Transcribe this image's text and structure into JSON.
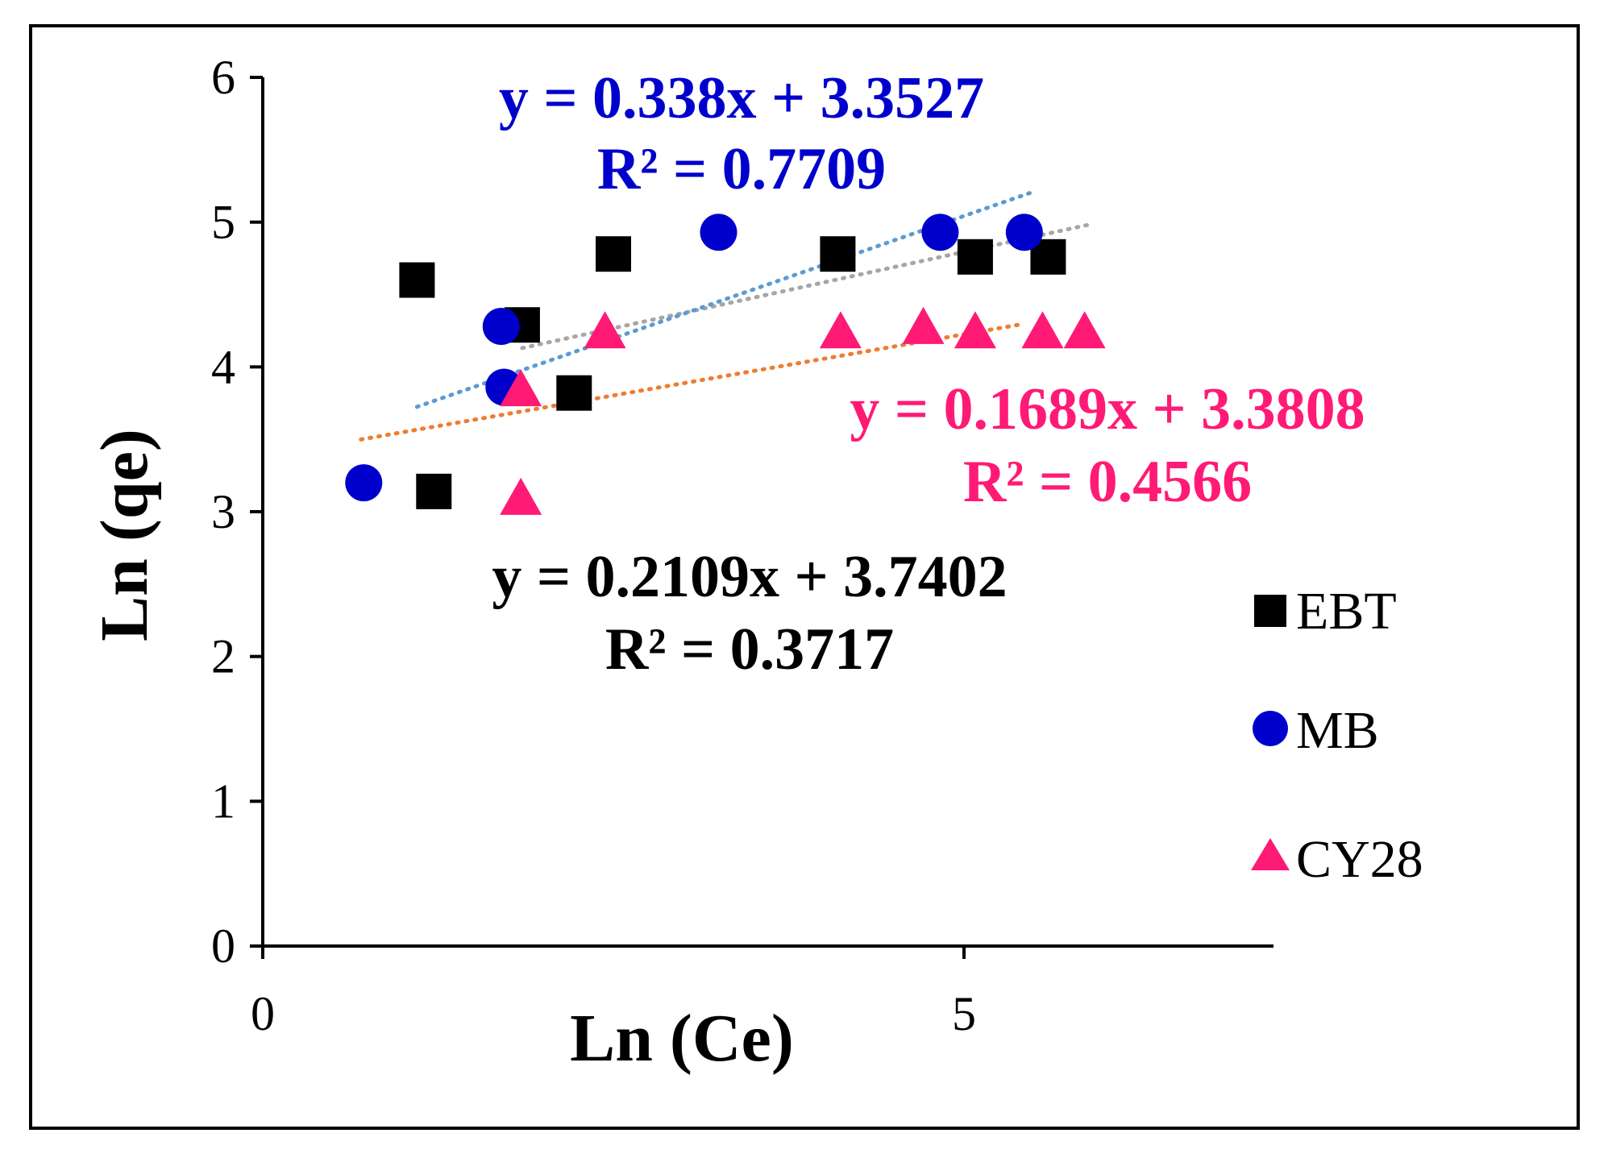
{
  "chart_data": {
    "type": "scatter",
    "xlabel": "Ln (Ce)",
    "ylabel": "Ln (qe)",
    "xlim": [
      0,
      7
    ],
    "ylim": [
      0,
      6
    ],
    "x_ticks": [
      "0",
      "5"
    ],
    "x_tick_values": [
      0,
      5
    ],
    "y_ticks": [
      "0",
      "1",
      "2",
      "3",
      "4",
      "5",
      "6"
    ],
    "y_tick_values": [
      0,
      1,
      2,
      3,
      4,
      5,
      6
    ],
    "grid": false,
    "legend_position": "right",
    "series": [
      {
        "name": "EBT",
        "marker": "square",
        "color": "#000000",
        "trend_color": "#a6a6a6",
        "trend_range": [
          1.85,
          5.9
        ],
        "slope": 0.2109,
        "intercept": 3.7402,
        "points": [
          [
            1.1,
            4.6
          ],
          [
            1.22,
            3.14
          ],
          [
            1.85,
            4.29
          ],
          [
            2.22,
            3.82
          ],
          [
            2.5,
            4.78
          ],
          [
            4.1,
            4.78
          ],
          [
            5.08,
            4.76
          ],
          [
            5.6,
            4.76
          ]
        ],
        "equation": "y = 0.2109x + 3.7402",
        "r2": "R² = 0.3717"
      },
      {
        "name": "MB",
        "marker": "circle",
        "color": "#0000cc",
        "trend_color": "#5b9bd5",
        "trend_range": [
          1.1,
          5.5
        ],
        "slope": 0.338,
        "intercept": 3.3527,
        "points": [
          [
            0.72,
            3.2
          ],
          [
            1.7,
            4.28
          ],
          [
            1.72,
            3.86
          ],
          [
            3.25,
            4.93
          ],
          [
            4.83,
            4.93
          ],
          [
            5.43,
            4.93
          ]
        ],
        "equation": "y = 0.338x + 3.3527",
        "r2": "R² = 0.7709"
      },
      {
        "name": "CY28",
        "marker": "triangle",
        "color": "#ff1a75",
        "trend_color": "#ed7d31",
        "trend_range": [
          0.7,
          5.4
        ],
        "slope": 0.1689,
        "intercept": 3.3808,
        "points": [
          [
            1.84,
            3.09
          ],
          [
            1.84,
            3.84
          ],
          [
            2.44,
            4.24
          ],
          [
            4.12,
            4.24
          ],
          [
            4.71,
            4.27
          ],
          [
            5.08,
            4.24
          ],
          [
            5.56,
            4.24
          ],
          [
            5.86,
            4.24
          ]
        ],
        "equation": "y = 0.1689x + 3.3808",
        "r2": "R² = 0.4566"
      }
    ]
  }
}
